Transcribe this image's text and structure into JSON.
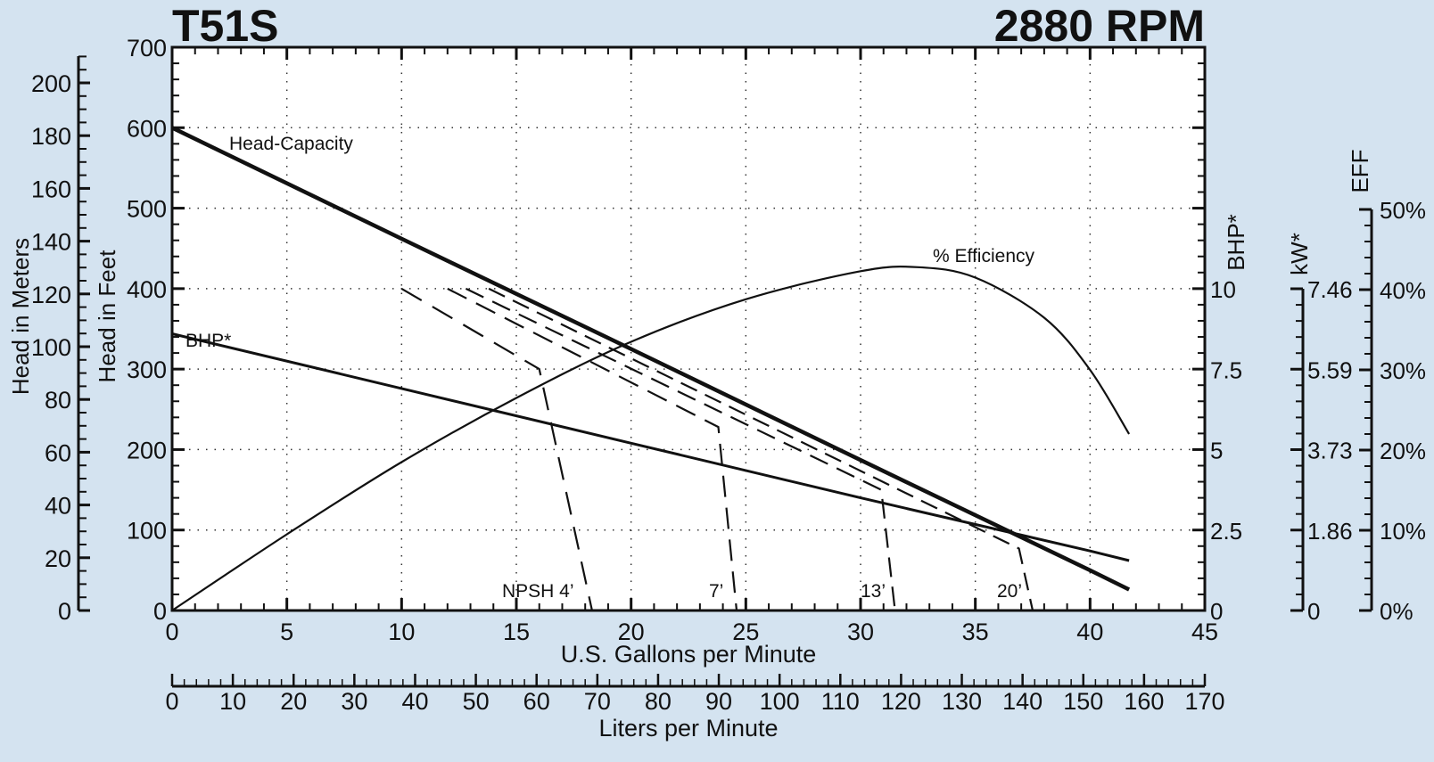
{
  "header": {
    "model": "T51S",
    "speed": "2880 RPM"
  },
  "colors": {
    "background": "#d4e3f0",
    "plot_background": "#ffffff",
    "ink": "#111111"
  },
  "axes": {
    "x_gpm": {
      "label": "U.S. Gallons per Minute",
      "min": 0,
      "max": 45,
      "ticks": [
        0,
        5,
        10,
        15,
        20,
        25,
        30,
        35,
        40,
        45
      ]
    },
    "x_lpm": {
      "label": "Liters per Minute",
      "min": 0,
      "max": 170,
      "ticks": [
        0,
        10,
        20,
        30,
        40,
        50,
        60,
        70,
        80,
        90,
        100,
        110,
        120,
        130,
        140,
        150,
        160,
        170
      ]
    },
    "y_feet": {
      "label": "Head in Feet",
      "min": 0,
      "max": 700,
      "ticks": [
        0,
        100,
        200,
        300,
        400,
        500,
        600,
        700
      ]
    },
    "y_meters": {
      "label": "Head in Meters",
      "min": 0,
      "max": 200,
      "ticks": [
        0,
        20,
        40,
        60,
        80,
        100,
        120,
        140,
        160,
        180,
        200
      ]
    },
    "y_bhp": {
      "label": "BHP*",
      "ticks": [
        "0",
        "2.5",
        "5",
        "7.5",
        "10"
      ]
    },
    "y_kw": {
      "label": "kW*",
      "ticks": [
        "0",
        "1.86",
        "3.73",
        "5.59",
        "7.46"
      ]
    },
    "y_eff": {
      "label": "EFF",
      "ticks": [
        "0%",
        "10%",
        "20%",
        "30%",
        "40%",
        "50%"
      ]
    }
  },
  "annotations": {
    "head_capacity": "Head-Capacity",
    "efficiency": "% Efficiency",
    "bhp": "BHP*",
    "npsh4": "NPSH 4’",
    "npsh7": "7’",
    "npsh13": "13’",
    "npsh20": "20’"
  },
  "chart_data": {
    "type": "line",
    "title": "T51S 2880 RPM",
    "xlabel": "U.S. Gallons per Minute",
    "xlabel_secondary": "Liters per Minute",
    "ylabel": "Head in Feet",
    "ylabel_secondary": "Head in Meters",
    "xlim": [
      0,
      45
    ],
    "ylim": [
      0,
      700
    ],
    "grid": true,
    "series": [
      {
        "name": "Head-Capacity",
        "unit": "ft",
        "x": [
          0,
          10,
          20,
          30,
          40,
          41.7
        ],
        "y": [
          600,
          462,
          325,
          187,
          50,
          26
        ]
      },
      {
        "name": "BHP*",
        "unit": "hp",
        "x": [
          0,
          10,
          20,
          30,
          40,
          41.7
        ],
        "y": [
          8.6,
          6.9,
          5.2,
          3.5,
          1.85,
          1.55
        ]
      },
      {
        "name": "% Efficiency",
        "unit": "%",
        "x": [
          0,
          5,
          10,
          15,
          20,
          25,
          30,
          32.5,
          35,
          38,
          40,
          41.7
        ],
        "y": [
          0,
          9.5,
          18.5,
          26.5,
          33.5,
          38.8,
          42.3,
          42.8,
          41.5,
          36.5,
          30,
          22
        ]
      },
      {
        "name": "NPSH 4'",
        "unit": "ft",
        "x": [
          10,
          16,
          18.3
        ],
        "y": [
          400,
          300,
          0
        ]
      },
      {
        "name": "NPSH 7'",
        "unit": "ft",
        "x": [
          12,
          23.8,
          24.6
        ],
        "y": [
          400,
          228,
          0
        ]
      },
      {
        "name": "NPSH 13'",
        "unit": "ft",
        "x": [
          12.8,
          30.9,
          31.5
        ],
        "y": [
          400,
          150,
          0
        ]
      },
      {
        "name": "NPSH 20'",
        "unit": "ft",
        "x": [
          13.8,
          36.9,
          37.5
        ],
        "y": [
          400,
          77,
          0
        ]
      }
    ],
    "secondary_axes": {
      "BHP": [
        0,
        2.5,
        5,
        7.5,
        10
      ],
      "kW": [
        0,
        1.86,
        3.73,
        5.59,
        7.46
      ],
      "EFF_percent": [
        0,
        10,
        20,
        30,
        40,
        50
      ]
    }
  }
}
